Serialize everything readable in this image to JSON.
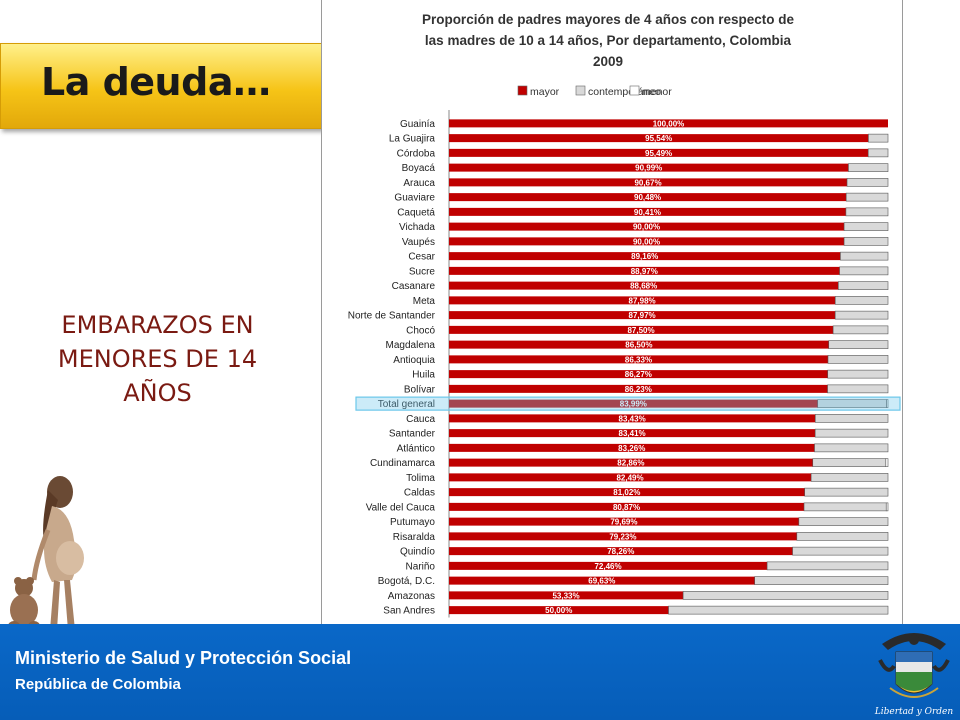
{
  "slide": {
    "title": "La deuda…",
    "subtitle": "EMBARAZOS EN MENORES DE 14 AÑOS"
  },
  "footer": {
    "ministry": "Ministerio de Salud y Protección Social",
    "republic": "República de Colombia",
    "emblem_motto": "Libertad y Orden"
  },
  "colors": {
    "mayor": "#c00000",
    "contemporaneo": "#d9d9d9",
    "menor": "#ffffff",
    "highlight": "#6cc7ea",
    "banner": "#f6c417",
    "footer": "#0a68c8"
  },
  "chart_data": {
    "type": "bar",
    "orientation": "horizontal",
    "stacked": true,
    "title_lines": [
      "Proporción de padres mayores  de 4 años con respecto de",
      "las madres de 10 a 14 años, Por departamento, Colombia",
      "2009"
    ],
    "legend_position": "top",
    "series": [
      {
        "name": "mayor",
        "color": "#c00000"
      },
      {
        "name": "contemporáneo",
        "color": "#d9d9d9"
      },
      {
        "name": "menor",
        "color": "#ffffff"
      }
    ],
    "xlim": [
      0,
      100
    ],
    "highlighted_category": "Total general",
    "rows": [
      {
        "name": "Guainía",
        "mayor": 100.0,
        "contemporaneo": 0.0,
        "menor": 0.0,
        "label": "100,00%"
      },
      {
        "name": "La Guajira",
        "mayor": 95.54,
        "contemporaneo": 4.46,
        "menor": 0.0,
        "label": "95,54%"
      },
      {
        "name": "Córdoba",
        "mayor": 95.49,
        "contemporaneo": 4.51,
        "menor": 0.0,
        "label": "95,49%"
      },
      {
        "name": "Boyacá",
        "mayor": 90.99,
        "contemporaneo": 9.01,
        "menor": 0.0,
        "label": "90,99%"
      },
      {
        "name": "Arauca",
        "mayor": 90.67,
        "contemporaneo": 9.33,
        "menor": 0.0,
        "label": "90,67%"
      },
      {
        "name": "Guaviare",
        "mayor": 90.48,
        "contemporaneo": 9.52,
        "menor": 0.0,
        "label": "90,48%"
      },
      {
        "name": "Caquetá",
        "mayor": 90.41,
        "contemporaneo": 9.59,
        "menor": 0.0,
        "label": "90,41%"
      },
      {
        "name": "Vichada",
        "mayor": 90.0,
        "contemporaneo": 10.0,
        "menor": 0.0,
        "label": "90,00%"
      },
      {
        "name": "Vaupés",
        "mayor": 90.0,
        "contemporaneo": 10.0,
        "menor": 0.0,
        "label": "90,00%"
      },
      {
        "name": "Cesar",
        "mayor": 89.16,
        "contemporaneo": 10.84,
        "menor": 0.0,
        "label": "89,16%"
      },
      {
        "name": "Sucre",
        "mayor": 88.97,
        "contemporaneo": 11.03,
        "menor": 0.0,
        "label": "88,97%"
      },
      {
        "name": "Casanare",
        "mayor": 88.68,
        "contemporaneo": 11.32,
        "menor": 0.0,
        "label": "88,68%"
      },
      {
        "name": "Meta",
        "mayor": 87.98,
        "contemporaneo": 12.02,
        "menor": 0.0,
        "label": "87,98%"
      },
      {
        "name": "Norte de Santander",
        "mayor": 87.97,
        "contemporaneo": 12.03,
        "menor": 0.0,
        "label": "87,97%"
      },
      {
        "name": "Chocó",
        "mayor": 87.5,
        "contemporaneo": 12.5,
        "menor": 0.0,
        "label": "87,50%"
      },
      {
        "name": "Magdalena",
        "mayor": 86.5,
        "contemporaneo": 13.5,
        "menor": 0.0,
        "label": "86,50%"
      },
      {
        "name": "Antioquia",
        "mayor": 86.33,
        "contemporaneo": 13.67,
        "menor": 0.0,
        "label": "86,33%"
      },
      {
        "name": "Huila",
        "mayor": 86.27,
        "contemporaneo": 13.73,
        "menor": 0.0,
        "label": "86,27%"
      },
      {
        "name": "Bolívar",
        "mayor": 86.23,
        "contemporaneo": 13.77,
        "menor": 0.0,
        "label": "86,23%"
      },
      {
        "name": "Total general",
        "mayor": 83.99,
        "contemporaneo": 15.71,
        "menor": 0.3,
        "label": "83,99%"
      },
      {
        "name": "Cauca",
        "mayor": 83.43,
        "contemporaneo": 16.57,
        "menor": 0.0,
        "label": "83,43%"
      },
      {
        "name": "Santander",
        "mayor": 83.41,
        "contemporaneo": 16.59,
        "menor": 0.0,
        "label": "83,41%"
      },
      {
        "name": "Atlántico",
        "mayor": 83.26,
        "contemporaneo": 16.74,
        "menor": 0.0,
        "label": "83,26%"
      },
      {
        "name": "Cundinamarca",
        "mayor": 82.86,
        "contemporaneo": 16.64,
        "menor": 0.5,
        "label": "82,86%"
      },
      {
        "name": "Tolima",
        "mayor": 82.49,
        "contemporaneo": 17.51,
        "menor": 0.0,
        "label": "82,49%"
      },
      {
        "name": "Caldas",
        "mayor": 81.02,
        "contemporaneo": 18.98,
        "menor": 0.0,
        "label": "81,02%"
      },
      {
        "name": "Valle del Cauca",
        "mayor": 80.87,
        "contemporaneo": 18.73,
        "menor": 0.4,
        "label": "80,87%"
      },
      {
        "name": "Putumayo",
        "mayor": 79.69,
        "contemporaneo": 20.31,
        "menor": 0.0,
        "label": "79,69%"
      },
      {
        "name": "Risaralda",
        "mayor": 79.23,
        "contemporaneo": 20.77,
        "menor": 0.0,
        "label": "79,23%"
      },
      {
        "name": "Quindío",
        "mayor": 78.26,
        "contemporaneo": 21.74,
        "menor": 0.0,
        "label": "78,26%"
      },
      {
        "name": "Nariño",
        "mayor": 72.46,
        "contemporaneo": 27.54,
        "menor": 0.0,
        "label": "72,46%"
      },
      {
        "name": "Bogotá, D.C.",
        "mayor": 69.63,
        "contemporaneo": 30.37,
        "menor": 0.0,
        "label": "69,63%"
      },
      {
        "name": "Amazonas",
        "mayor": 53.33,
        "contemporaneo": 46.67,
        "menor": 0.0,
        "label": "53,33%"
      },
      {
        "name": "San Andres",
        "mayor": 50.0,
        "contemporaneo": 50.0,
        "menor": 0.0,
        "label": "50,00%"
      }
    ]
  }
}
